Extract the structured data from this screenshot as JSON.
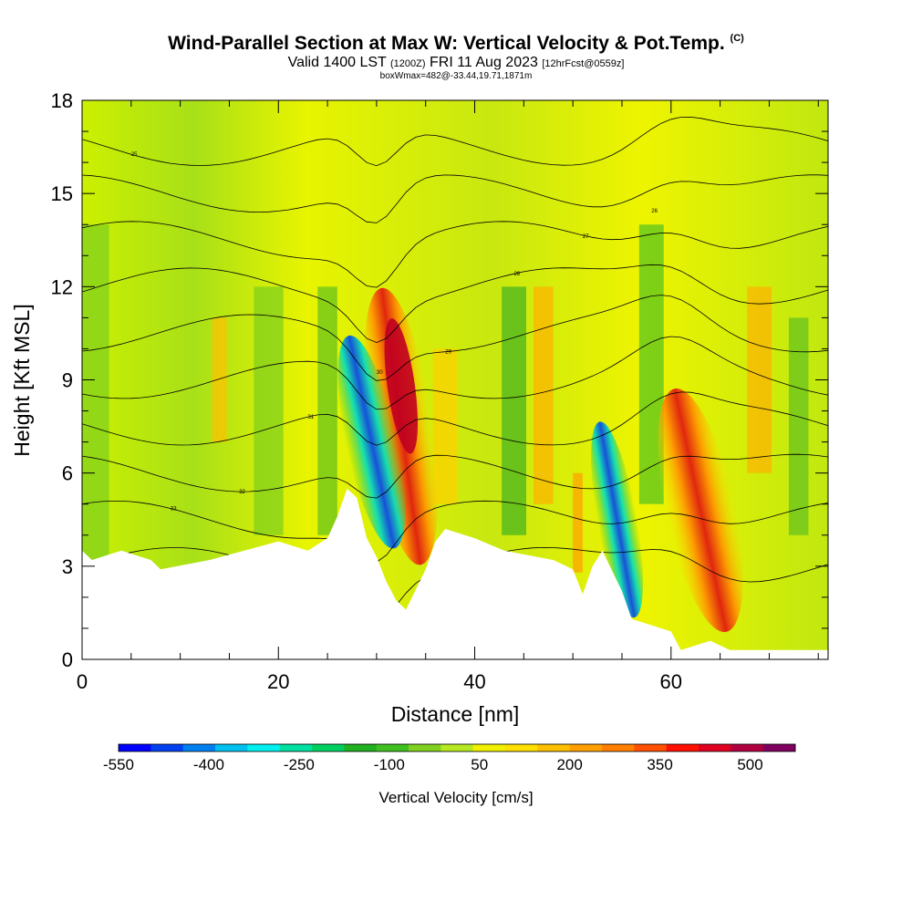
{
  "header": {
    "title": "Wind-Parallel Section at Max W: Vertical Velocity & Pot.Temp.",
    "copyright": "(C)",
    "valid_pre": "Valid 1400 LST",
    "valid_z": "(1200Z)",
    "valid_date": "FRI 11 Aug 2023",
    "fcst": "[12hrFcst@0559z]",
    "box": "boxWmax=482@-33.44,19.71,1871m"
  },
  "chart_data": {
    "type": "heatmap",
    "xlabel": "Distance [nm]",
    "ylabel": "Height [Kft MSL]",
    "xlim": [
      0,
      76
    ],
    "ylim": [
      0,
      18
    ],
    "xticks": [
      "0",
      "20",
      "40",
      "60"
    ],
    "yticks": [
      "0",
      "3",
      "6",
      "9",
      "12",
      "15",
      "18"
    ],
    "colorbar": {
      "title": "Vertical Velocity [cm/s]",
      "range": [
        -550,
        575
      ],
      "labels": [
        "-550",
        "-400",
        "-250",
        "-100",
        "50",
        "200",
        "350",
        "500"
      ],
      "colors": [
        "#0000ff",
        "#0040f0",
        "#0080f0",
        "#00c0f0",
        "#00f0f0",
        "#00e0a0",
        "#00d060",
        "#20b020",
        "#40c020",
        "#80d020",
        "#b8e820",
        "#f0f000",
        "#ffe000",
        "#ffc000",
        "#ffa000",
        "#ff8000",
        "#ff5000",
        "#ff1000",
        "#e00020",
        "#b00040",
        "#800060"
      ]
    },
    "contour_labels": [
      "34",
      "33",
      "32",
      "31",
      "30",
      "29",
      "28",
      "27",
      "26",
      "25"
    ],
    "terrain_kft": [
      [
        0,
        3.5
      ],
      [
        1,
        3.2
      ],
      [
        4,
        3.5
      ],
      [
        7,
        3.2
      ],
      [
        8,
        2.9
      ],
      [
        13,
        3.2
      ],
      [
        20,
        3.8
      ],
      [
        23,
        3.5
      ],
      [
        25,
        3.9
      ],
      [
        26,
        4.6
      ],
      [
        27,
        5.5
      ],
      [
        28,
        5.2
      ],
      [
        29,
        3.9
      ],
      [
        30,
        3.3
      ],
      [
        31,
        2.5
      ],
      [
        32,
        1.9
      ],
      [
        33,
        1.6
      ],
      [
        35,
        2.9
      ],
      [
        36,
        3.8
      ],
      [
        37,
        4.2
      ],
      [
        40,
        3.9
      ],
      [
        43,
        3.5
      ],
      [
        48,
        3.2
      ],
      [
        50,
        2.9
      ],
      [
        51,
        2.1
      ],
      [
        52,
        3.0
      ],
      [
        53,
        3.5
      ],
      [
        55,
        2.2
      ],
      [
        56,
        1.3
      ],
      [
        57,
        1.2
      ],
      [
        60,
        0.9
      ],
      [
        61,
        0.3
      ],
      [
        64,
        0.6
      ],
      [
        66,
        0.3
      ],
      [
        76,
        0.3
      ]
    ]
  }
}
